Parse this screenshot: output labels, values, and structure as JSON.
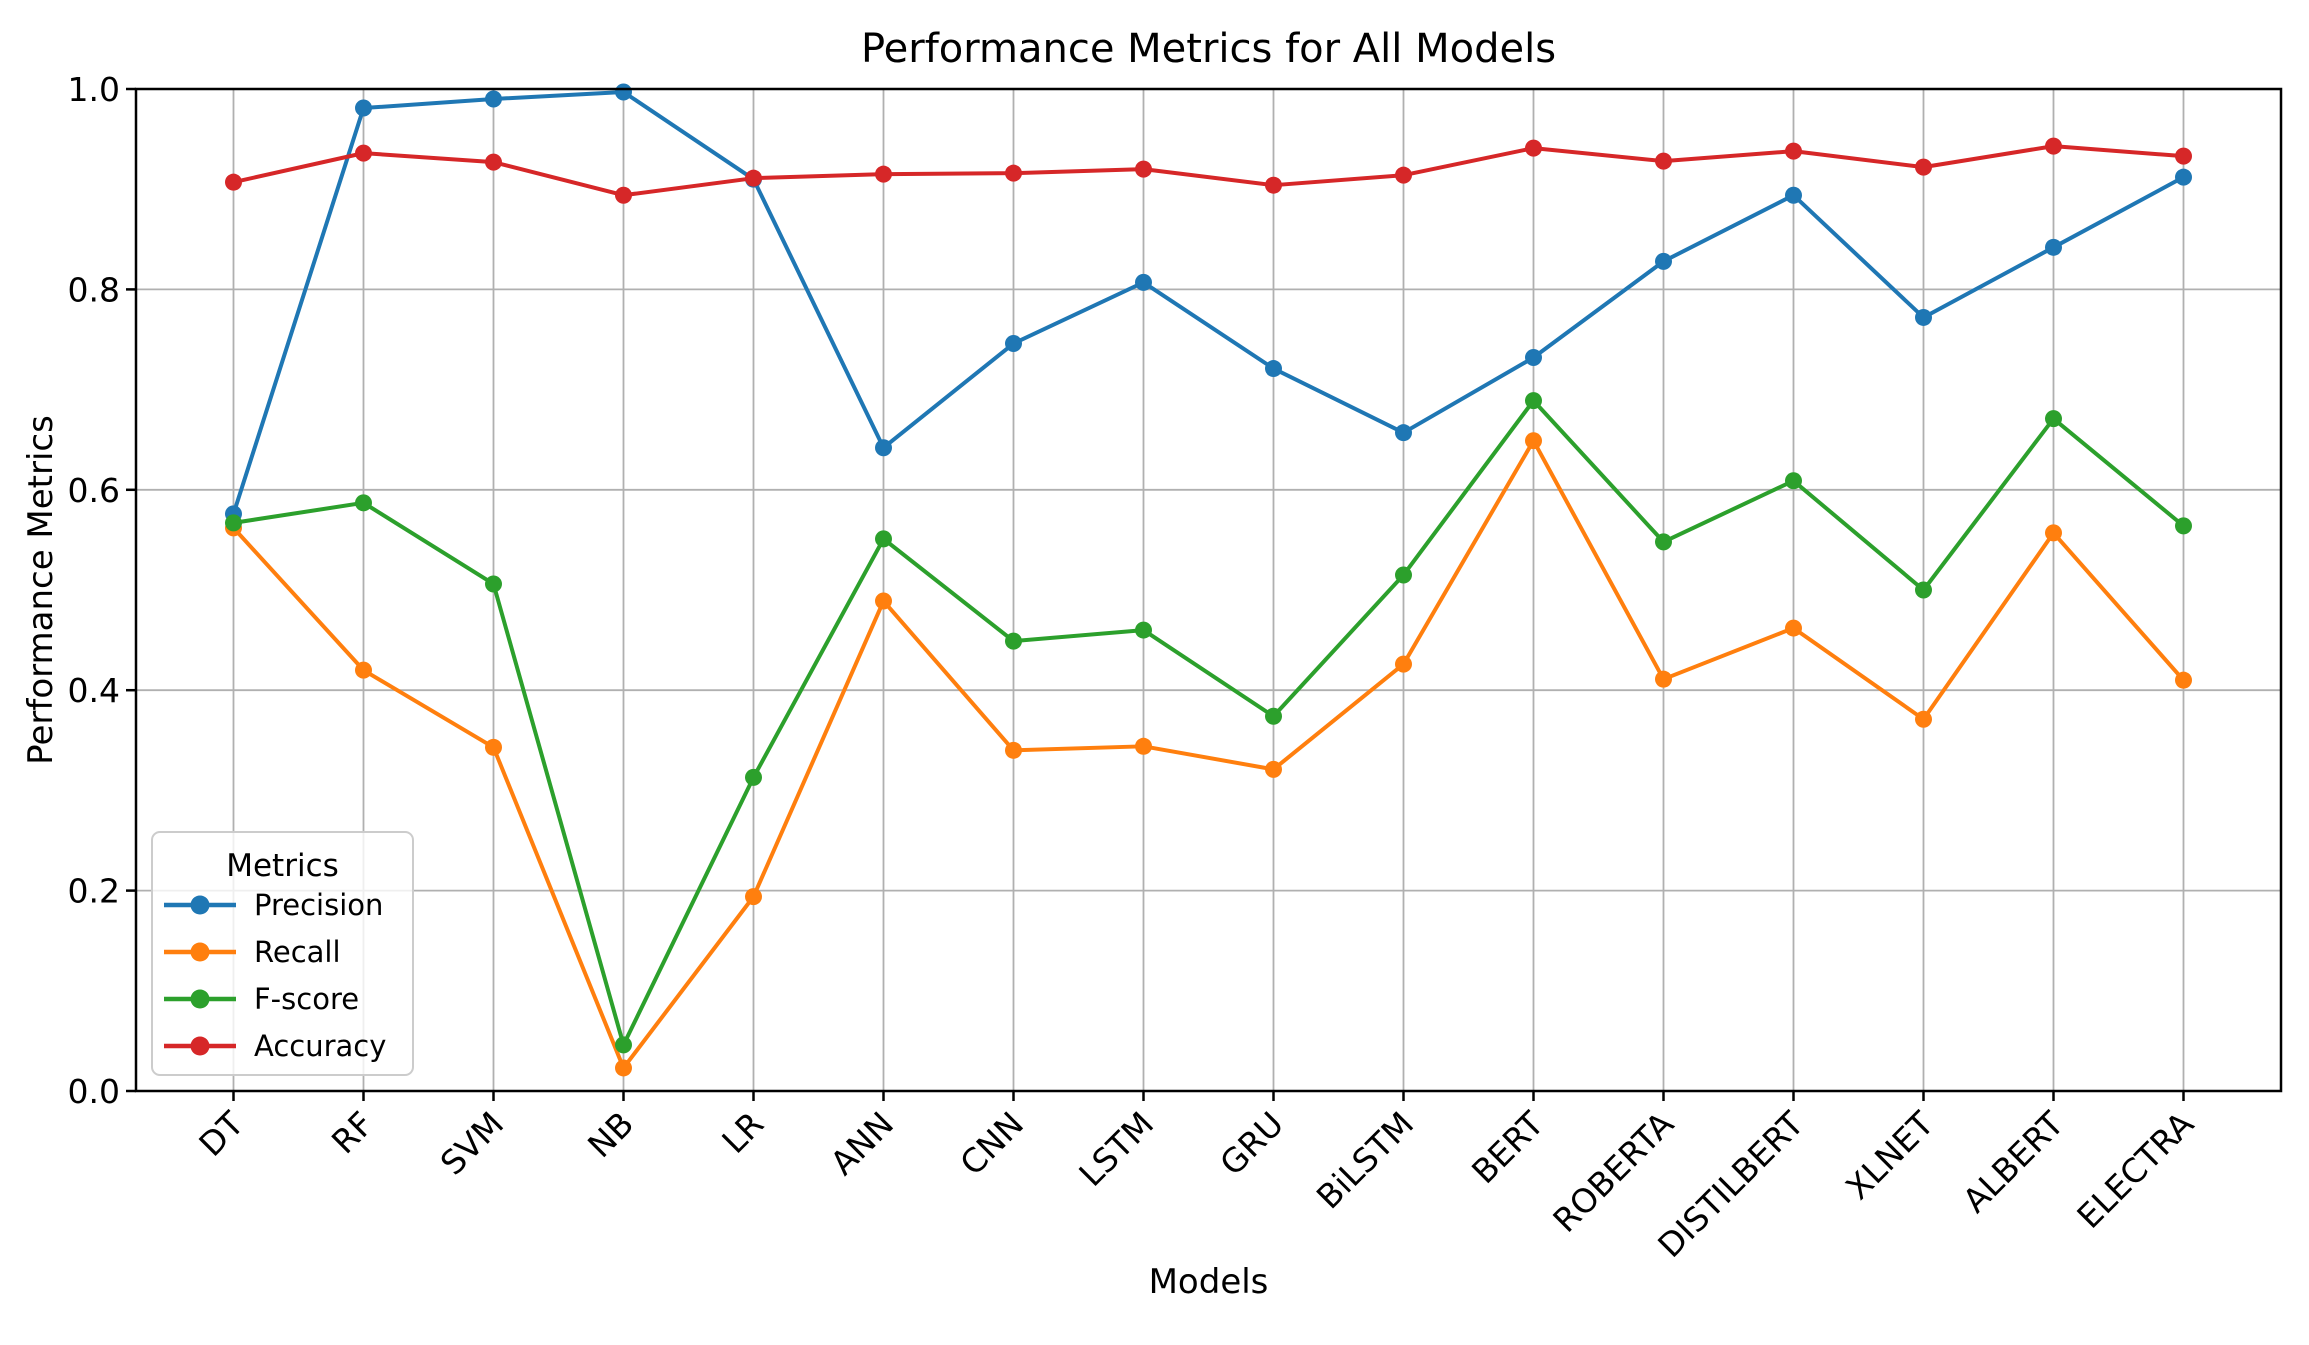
{
  "chart_data": {
    "type": "line",
    "title": "Performance Metrics for All Models",
    "xlabel": "Models",
    "ylabel": "Performance Metrics",
    "ylim": [
      0.0,
      1.0
    ],
    "ytick_values": [
      0.0,
      0.2,
      0.4,
      0.6,
      0.8,
      1.0
    ],
    "ytick_labels": [
      "0.0",
      "0.2",
      "0.4",
      "0.6",
      "0.8",
      "1.0"
    ],
    "grid": true,
    "categories": [
      "DT",
      "RF",
      "SVM",
      "NB",
      "LR",
      "ANN",
      "CNN",
      "LSTM",
      "GRU",
      "BiLSTM",
      "BERT",
      "ROBERTA",
      "DISTILBERT",
      "XLNET",
      "ALBERT",
      "ELECTRA"
    ],
    "series": [
      {
        "name": "Precision",
        "color": "#1f77b4",
        "values": [
          0.576,
          0.981,
          0.99,
          0.997,
          0.91,
          0.642,
          0.746,
          0.807,
          0.721,
          0.657,
          0.732,
          0.828,
          0.894,
          0.772,
          0.842,
          0.912
        ]
      },
      {
        "name": "Recall",
        "color": "#ff7f0e",
        "values": [
          0.562,
          0.42,
          0.343,
          0.023,
          0.194,
          0.489,
          0.34,
          0.344,
          0.321,
          0.426,
          0.649,
          0.411,
          0.462,
          0.371,
          0.557,
          0.41
        ]
      },
      {
        "name": "F-score",
        "color": "#2ca02c",
        "values": [
          0.567,
          0.587,
          0.506,
          0.046,
          0.313,
          0.551,
          0.449,
          0.46,
          0.374,
          0.515,
          0.689,
          0.548,
          0.609,
          0.5,
          0.671,
          0.564
        ]
      },
      {
        "name": "Accuracy",
        "color": "#d62728",
        "values": [
          0.907,
          0.936,
          0.927,
          0.894,
          0.911,
          0.915,
          0.916,
          0.92,
          0.904,
          0.914,
          0.941,
          0.928,
          0.938,
          0.922,
          0.943,
          0.933
        ]
      }
    ],
    "legend": {
      "title": "Metrics",
      "position": "lower left"
    }
  }
}
